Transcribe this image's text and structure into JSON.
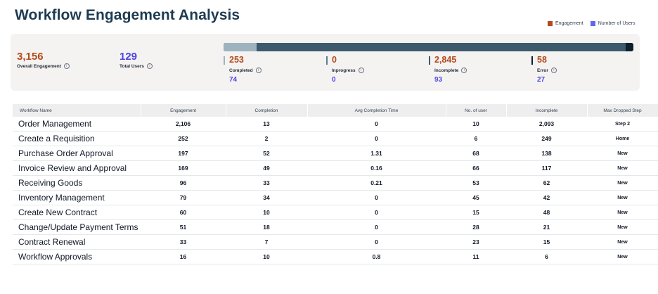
{
  "header": {
    "title": "Workflow Engagement Analysis"
  },
  "legend": [
    {
      "label": "Engagement",
      "color": "#b54a1c"
    },
    {
      "label": "Number of Users",
      "color": "#6366f1"
    }
  ],
  "summary": {
    "overall_engagement": {
      "value": "3,156",
      "label": "Overall Engagement"
    },
    "total_users": {
      "value": "129",
      "label": "Total Users"
    }
  },
  "status_bar": {
    "colors": [
      "#9fb2c0",
      "#e5e7eb",
      "#3d5a6c",
      "#0f1f2b"
    ],
    "stats": [
      {
        "value": "253",
        "label": "Completed",
        "users": "74",
        "marker_color": "#9fb2c0"
      },
      {
        "value": "0",
        "label": "Inprogress",
        "users": "0",
        "marker_color": "#5f7d8f"
      },
      {
        "value": "2,845",
        "label": "Incomplete",
        "users": "93",
        "marker_color": "#3d5a6c"
      },
      {
        "value": "58",
        "label": "Error",
        "users": "27",
        "marker_color": "#0f1f2b"
      }
    ]
  },
  "table": {
    "columns": [
      "Workflow Name",
      "Engagement",
      "Completion",
      "Avg Completion Time",
      "No. of user",
      "Incomplete",
      "Max Dropped Step"
    ],
    "rows": [
      [
        "Order Management",
        "2,106",
        "13",
        "0",
        "10",
        "2,093",
        "Step 2"
      ],
      [
        "Create a Requisition",
        "252",
        "2",
        "0",
        "6",
        "249",
        "Home"
      ],
      [
        "Purchase Order Approval",
        "197",
        "52",
        "1.31",
        "68",
        "138",
        "New"
      ],
      [
        "Invoice Review and Approval",
        "169",
        "49",
        "0.16",
        "66",
        "117",
        "New"
      ],
      [
        "Receiving Goods",
        "96",
        "33",
        "0.21",
        "53",
        "62",
        "New"
      ],
      [
        "Inventory Management",
        "79",
        "34",
        "0",
        "45",
        "42",
        "New"
      ],
      [
        "Create New Contract",
        "60",
        "10",
        "0",
        "15",
        "48",
        "New"
      ],
      [
        "Change/Update Payment Terms",
        "51",
        "18",
        "0",
        "28",
        "21",
        "New"
      ],
      [
        "Contract Renewal",
        "33",
        "7",
        "0",
        "23",
        "15",
        "New"
      ],
      [
        "Workflow Approvals",
        "16",
        "10",
        "0.8",
        "11",
        "6",
        "New"
      ]
    ]
  }
}
